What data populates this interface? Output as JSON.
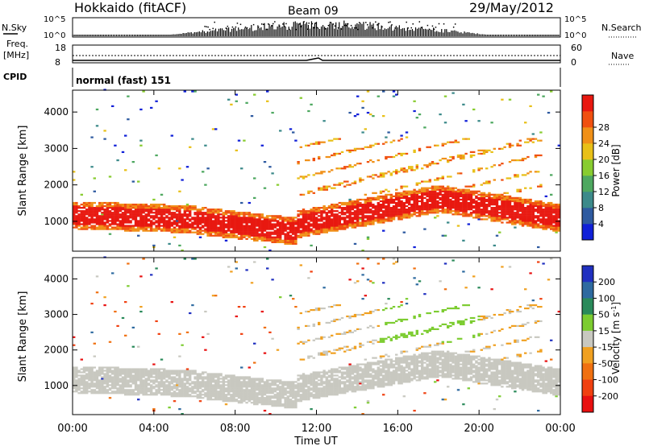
{
  "header": {
    "station": "Hokkaido (fitACF)",
    "beam": "Beam 09",
    "date": "29/May/2012"
  },
  "strips": {
    "nsky_label": "N.Sky",
    "nsearch_label": "N.Search",
    "log_ticks": [
      "10^5",
      "10^0"
    ],
    "freq_label_1": "Freq.",
    "freq_label_2": "[MHz]",
    "freq_ticks": [
      "18",
      "8"
    ],
    "nave_label": "Nave",
    "nave_ticks": [
      "60",
      "0"
    ],
    "cpid_label": "CPID",
    "cpid_value": "normal (fast) 151"
  },
  "axes": {
    "xlabel": "Time UT",
    "x_ticks": [
      "00:00",
      "04:00",
      "08:00",
      "12:00",
      "16:00",
      "20:00",
      "00:00"
    ],
    "x_range_hours": [
      0,
      24
    ],
    "ylabel": "Slant Range [km]",
    "y_ticks": [
      "1000",
      "2000",
      "3000",
      "4000"
    ],
    "y_range_km": [
      180,
      4600
    ]
  },
  "chart_data": [
    {
      "type": "heatmap",
      "parameter": "Power",
      "colorbar_label": "Power [dB]",
      "colorbar_ticks": [
        "4",
        "8",
        "12",
        "16",
        "20",
        "24",
        "28"
      ],
      "colorbar_colors": [
        "#1020d8",
        "#2e5aa0",
        "#3c8a8a",
        "#4ea860",
        "#88cc30",
        "#e8c018",
        "#f09018",
        "#f05010",
        "#e81810"
      ],
      "x_range_hours": [
        0,
        24
      ],
      "y_range_km": [
        180,
        4600
      ],
      "regions": [
        {
          "name": "strong-near-range-band",
          "x": [
            0,
            24
          ],
          "y_km": [
            700,
            1500
          ],
          "value_db": 30
        },
        {
          "name": "diagonal-echoes",
          "x": [
            11,
            23
          ],
          "y_km": [
            1800,
            3200
          ],
          "value_db": 22
        },
        {
          "name": "sparse-far-range",
          "x": [
            0,
            24
          ],
          "y_km": [
            2000,
            4400
          ],
          "value_db": 14
        }
      ]
    },
    {
      "type": "heatmap",
      "parameter": "Velocity",
      "colorbar_label": "Velocity [m s^-1]",
      "colorbar_ticks": [
        "200",
        "100",
        "50",
        "15",
        "-15",
        "-50",
        "-100",
        "-200"
      ],
      "colorbar_colors": [
        "#2030c0",
        "#2e6aa0",
        "#2a8a5a",
        "#7ccc30",
        "#c8c8c0",
        "#f0a020",
        "#f07010",
        "#f04010",
        "#e81010"
      ],
      "x_range_hours": [
        0,
        24
      ],
      "y_range_km": [
        180,
        4600
      ],
      "regions": [
        {
          "name": "ground-scatter-band",
          "x": [
            0,
            24
          ],
          "y_km": [
            700,
            1500
          ],
          "value_ms": 0
        },
        {
          "name": "positive-velocity-echoes",
          "x": [
            14,
            20
          ],
          "y_km": [
            2200,
            3300
          ],
          "value_ms": 60
        }
      ]
    }
  ]
}
